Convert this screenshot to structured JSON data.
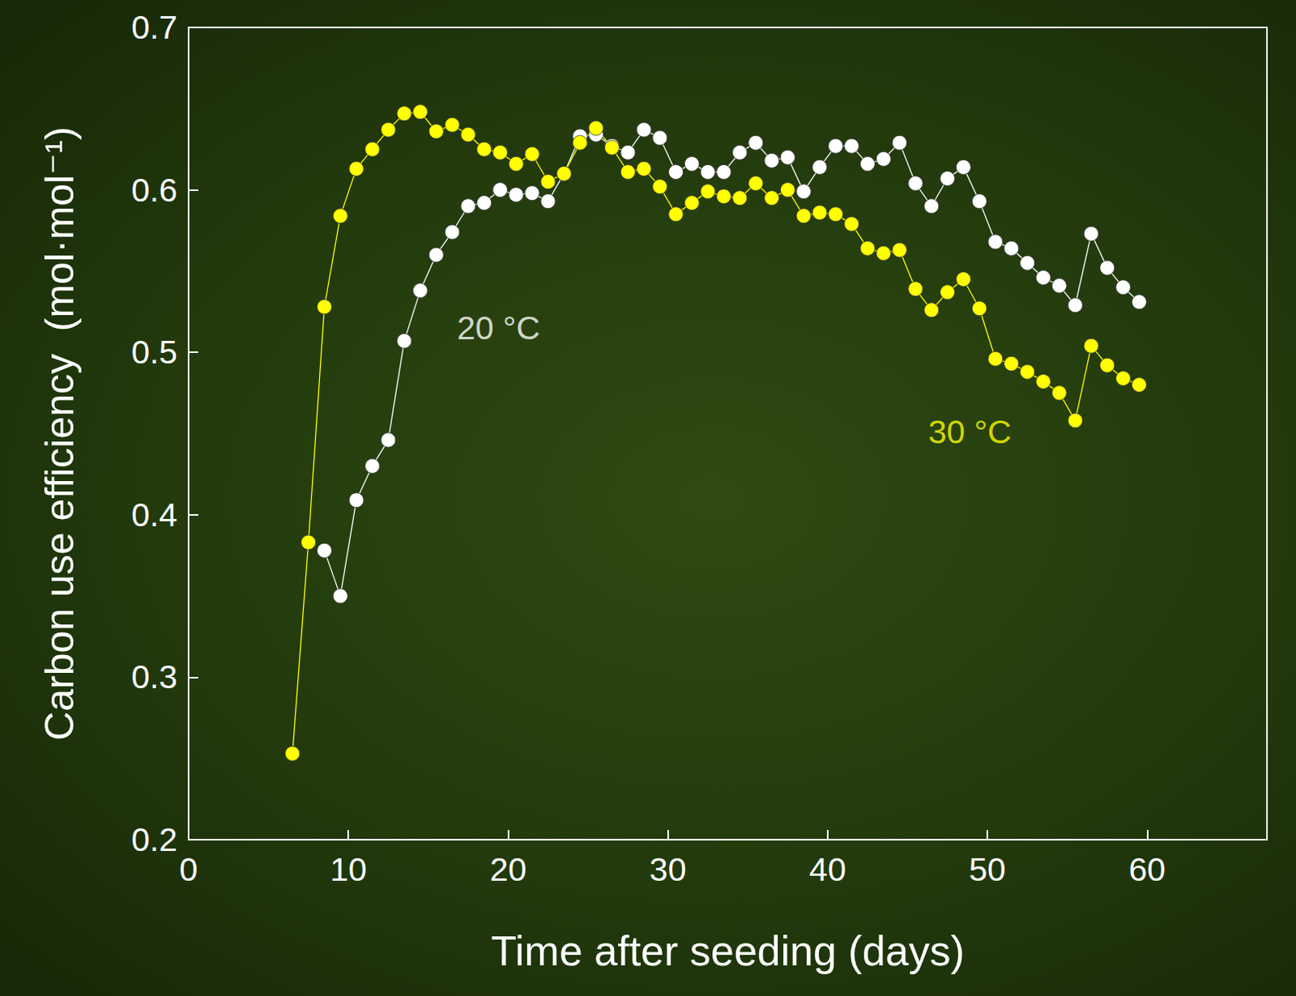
{
  "chart_data": {
    "type": "line",
    "x_label": "Time after seeding (days)",
    "y_label": "Carbon use efficiency  (mol·mol⁻¹)",
    "xlim": [
      0,
      67.5
    ],
    "xticks": [
      0,
      10,
      20,
      30,
      40,
      50,
      60
    ],
    "ylim": [
      0.2,
      0.7
    ],
    "yticks": [
      0.2,
      0.3,
      0.4,
      0.5,
      0.6,
      0.7
    ],
    "grid": false,
    "marker": "circle",
    "series": [
      {
        "name": "20 °C",
        "color": "#ffffff",
        "x": [
          8.5,
          9.5,
          10.5,
          11.5,
          12.5,
          13.5,
          14.5,
          15.5,
          16.5,
          17.5,
          18.5,
          19.5,
          20.5,
          21.5,
          22.5,
          23.5,
          24.5,
          25.5,
          26.5,
          27.5,
          28.5,
          29.5,
          30.5,
          31.5,
          32.5,
          33.5,
          34.5,
          35.5,
          36.5,
          37.5,
          38.5,
          39.5,
          40.5,
          41.5,
          42.5,
          43.5,
          44.5,
          45.5,
          46.5,
          47.5,
          48.5,
          49.5,
          50.5,
          51.5,
          52.5,
          53.5,
          54.5,
          55.5,
          56.5,
          57.5,
          58.5,
          59.5
        ],
        "values": [
          0.378,
          0.35,
          0.409,
          0.43,
          0.446,
          0.507,
          0.538,
          0.56,
          0.574,
          0.59,
          0.592,
          0.6,
          0.597,
          0.598,
          0.593,
          0.61,
          0.633,
          0.634,
          0.627,
          0.623,
          0.637,
          0.632,
          0.611,
          0.616,
          0.611,
          0.611,
          0.623,
          0.629,
          0.618,
          0.62,
          0.599,
          0.614,
          0.627,
          0.627,
          0.616,
          0.619,
          0.629,
          0.604,
          0.59,
          0.607,
          0.614,
          0.593,
          0.568,
          0.564,
          0.555,
          0.546,
          0.541,
          0.529,
          0.573,
          0.552,
          0.54,
          0.531
        ]
      },
      {
        "name": "30 °C",
        "color": "#ffff00",
        "x": [
          6.5,
          7.5,
          8.5,
          9.5,
          10.5,
          11.5,
          12.5,
          13.5,
          14.5,
          15.5,
          16.5,
          17.5,
          18.5,
          19.5,
          20.5,
          21.5,
          22.5,
          23.5,
          24.5,
          25.5,
          26.5,
          27.5,
          28.5,
          29.5,
          30.5,
          31.5,
          32.5,
          33.5,
          34.5,
          35.5,
          36.5,
          37.5,
          38.5,
          39.5,
          40.5,
          41.5,
          42.5,
          43.5,
          44.5,
          45.5,
          46.5,
          47.5,
          48.5,
          49.5,
          50.5,
          51.5,
          52.5,
          53.5,
          54.5,
          55.5,
          56.5,
          57.5,
          58.5,
          59.5
        ],
        "values": [
          0.253,
          0.383,
          0.528,
          0.584,
          0.613,
          0.625,
          0.637,
          0.647,
          0.648,
          0.636,
          0.64,
          0.634,
          0.625,
          0.623,
          0.616,
          0.622,
          0.605,
          0.61,
          0.629,
          0.638,
          0.626,
          0.611,
          0.613,
          0.602,
          0.585,
          0.592,
          0.599,
          0.596,
          0.595,
          0.604,
          0.595,
          0.6,
          0.584,
          0.586,
          0.585,
          0.579,
          0.564,
          0.561,
          0.563,
          0.539,
          0.526,
          0.537,
          0.545,
          0.527,
          0.496,
          0.493,
          0.488,
          0.482,
          0.475,
          0.458,
          0.504,
          0.492,
          0.484,
          0.48
        ]
      }
    ],
    "annotations": [
      {
        "text": "20 °C",
        "x": 19.4,
        "y": 0.515,
        "series": "20 °C"
      },
      {
        "text": "30 °C",
        "x": 48.9,
        "y": 0.451,
        "series": "30 °C"
      }
    ]
  }
}
